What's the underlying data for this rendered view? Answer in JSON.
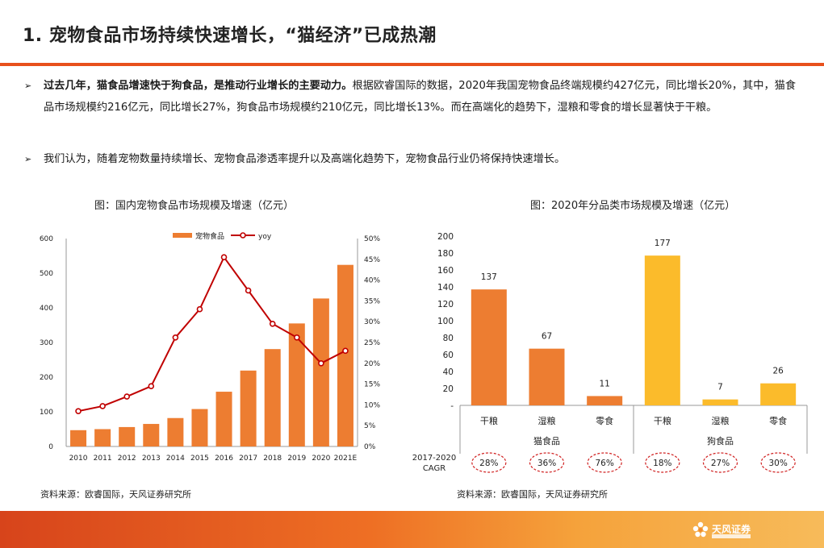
{
  "page": {
    "title": "1. 宠物食品市场持续快速增长，“猫经济”已成热潮",
    "bullets": [
      {
        "bold": "过去几年，猫食品增速快于狗食品，是推动行业增长的主要动力。",
        "text": "根据欧睿国际的数据，2020年我国宠物食品终端规模约427亿元，同比增长20%，其中，猫食品市场规模约216亿元，同比增长27%，狗食品市场规模约210亿元，同比增长13%。而在高端化的趋势下，湿粮和零食的增长显著快于干粮。"
      },
      {
        "bold": "",
        "text": "我们认为，随着宠物数量持续增长、宠物食品渗透率提升以及高端化趋势下，宠物食品行业仍将保持快速增长。"
      }
    ],
    "arrow": "➢"
  },
  "chart_data": [
    {
      "type": "bar+line",
      "title": "图：国内宠物食品市场规模及增速（亿元）",
      "categories": [
        "2010",
        "2011",
        "2012",
        "2013",
        "2014",
        "2015",
        "2016",
        "2017",
        "2018",
        "2019",
        "2020",
        "2021E"
      ],
      "series": [
        {
          "name": "宠物食品",
          "type": "bar",
          "axis": "left",
          "color": "#ed7d31",
          "values": [
            47,
            50,
            56,
            65,
            82,
            108,
            158,
            219,
            281,
            355,
            427,
            524
          ]
        },
        {
          "name": "yoy",
          "type": "line",
          "axis": "right",
          "color": "#c00000",
          "values": [
            8.5,
            9.7,
            12.0,
            14.5,
            26.2,
            33.0,
            45.5,
            37.5,
            29.5,
            26.2,
            20.0,
            23.0
          ]
        }
      ],
      "y_left": {
        "min": 0,
        "max": 600,
        "ticks": [
          "0",
          "100",
          "200",
          "300",
          "400",
          "500",
          "600"
        ]
      },
      "y_right": {
        "min": 0,
        "max": 50,
        "ticks": [
          "0%",
          "5%",
          "10%",
          "15%",
          "20%",
          "25%",
          "30%",
          "35%",
          "40%",
          "45%",
          "50%"
        ]
      },
      "legend": [
        "宠物食品",
        "yoy"
      ],
      "legend_position": "top-center",
      "source": "资料来源：欧睿国际，天风证券研究所"
    },
    {
      "type": "bar",
      "title": "图：2020年分品类市场规模及增速（亿元）",
      "categories": [
        "干粮",
        "湿粮",
        "零食",
        "干粮",
        "湿粮",
        "零食"
      ],
      "groups": [
        {
          "name": "猫食品",
          "span": 3
        },
        {
          "name": "狗食品",
          "span": 3
        }
      ],
      "values": [
        137,
        67,
        11,
        177,
        7,
        26
      ],
      "value_labels": [
        "137",
        "67",
        "11",
        "177",
        "7",
        "26"
      ],
      "colors": [
        "#ed7d31",
        "#ed7d31",
        "#ed7d31",
        "#fbbb2b",
        "#fbbb2b",
        "#fbbb2b"
      ],
      "y": {
        "min": 0,
        "max": 200,
        "ticks": [
          "-",
          "20",
          "40",
          "60",
          "80",
          "100",
          "120",
          "140",
          "160",
          "180",
          "200"
        ]
      },
      "cagr_label": [
        "2017-2020",
        "CAGR"
      ],
      "cagr": [
        "28%",
        "36%",
        "76%",
        "18%",
        "27%",
        "30%"
      ],
      "source": "资料来源：欧睿国际，天风证券研究所"
    }
  ],
  "footer": {
    "logo_text": "天风证券"
  }
}
